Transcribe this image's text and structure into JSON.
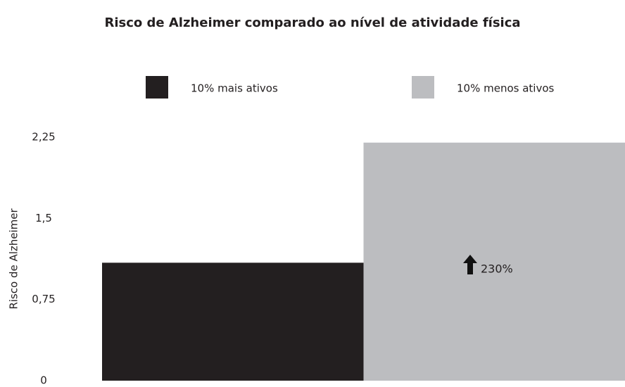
{
  "chart_data": {
    "type": "bar",
    "title": "Risco de Alzheimer comparado ao nível de atividade física",
    "y_label": "Risco de Alzheimer",
    "categories": [
      null
    ],
    "series": [
      {
        "name": "10% mais ativos",
        "color": "#231f20",
        "values": [
          1.09
        ]
      },
      {
        "name": "10% menos ativos",
        "color": "#bcbdc0",
        "values": [
          2.2
        ]
      }
    ],
    "annotation": "230%",
    "ylim": [
      0,
      2.25
    ],
    "yticks": [
      0,
      {
        "value": 0.75,
        "label": "0,75"
      },
      {
        "value": 1.5,
        "label": "1,5"
      },
      {
        "value": 2.25,
        "label": "2,25"
      }
    ],
    "grid": false,
    "legend": "top"
  }
}
